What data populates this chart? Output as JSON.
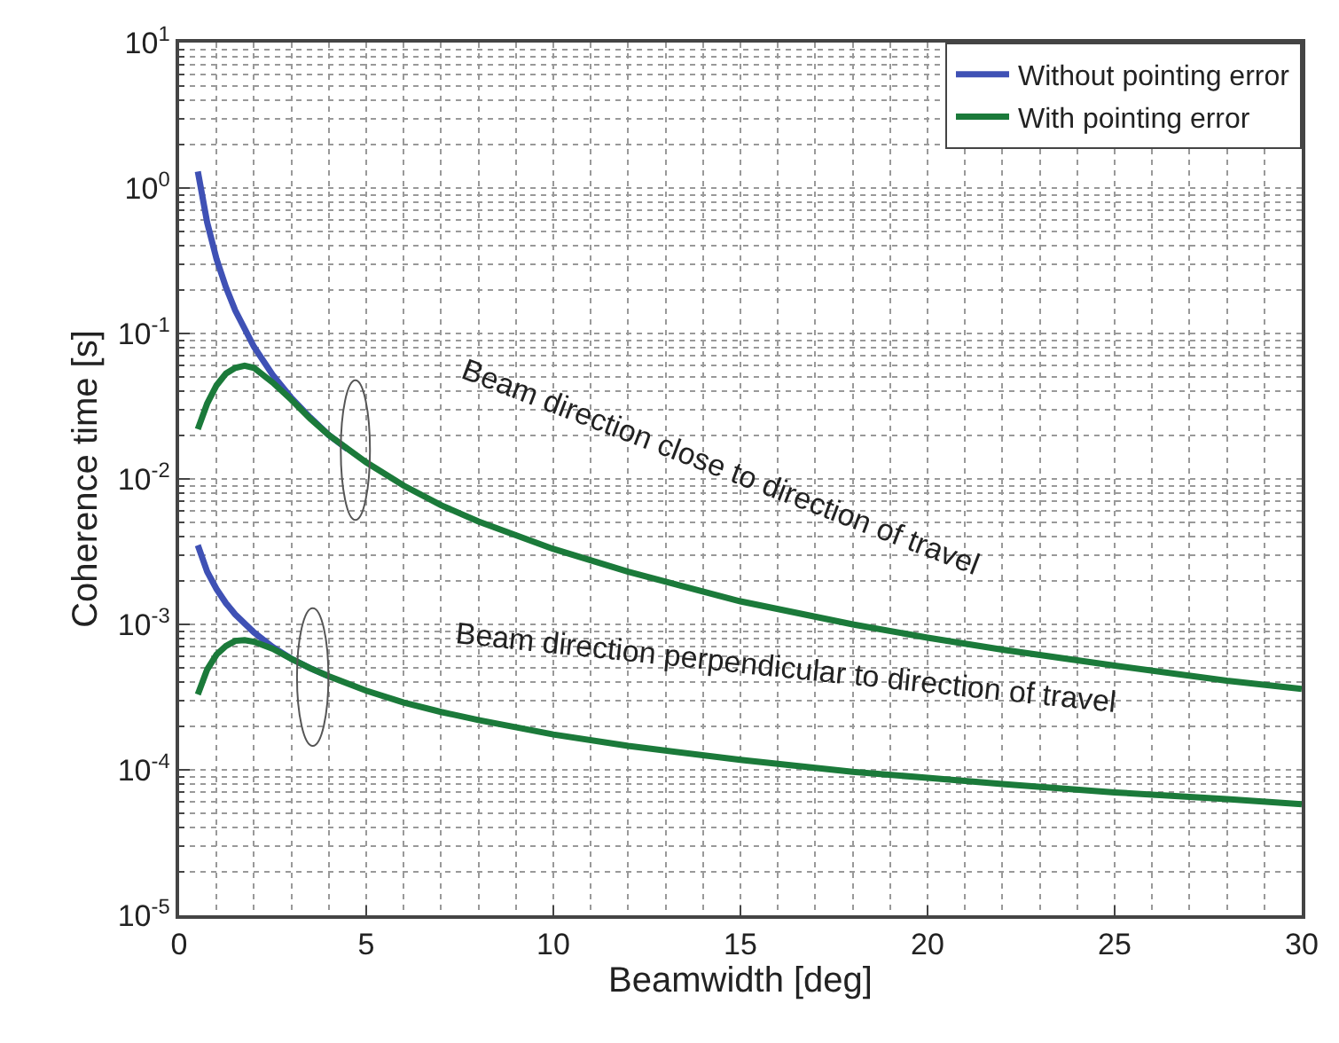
{
  "chart_data": {
    "type": "line",
    "xlabel": "Beamwidth [deg]",
    "ylabel": "Coherence time [s]",
    "log": "y",
    "xlim": [
      0,
      30
    ],
    "xticks": [
      0,
      5,
      10,
      15,
      20,
      25,
      30
    ],
    "ylim": [
      1e-05,
      10
    ],
    "yticks": [
      {
        "value": 1e-05,
        "label": "10$^{-5}$"
      },
      {
        "value": 0.0001,
        "label": "10$^{-4}$"
      },
      {
        "value": 0.001,
        "label": "10$^{-3}$"
      },
      {
        "value": 0.01,
        "label": "10$^{-2}$"
      },
      {
        "value": 0.1,
        "label": "10$^{-1}$"
      },
      {
        "value": 1,
        "label": "10$^{0}$"
      },
      {
        "value": 10,
        "label": "10$^{1}$"
      }
    ],
    "grid": true,
    "legend": "top right",
    "marker": "none",
    "line_style": "solid",
    "series": [
      {
        "name": "Without pointing error",
        "color": "#3f51b5",
        "x": [
          0.5,
          0.75,
          1,
          1.25,
          1.5,
          2,
          2.5,
          3,
          3.5,
          4,
          4.5
        ],
        "values": [
          1.3,
          0.578,
          0.325,
          0.208,
          0.144,
          0.081,
          0.052,
          0.036,
          0.0265,
          0.02,
          0.016
        ]
      },
      {
        "name": "With pointing error",
        "color": "#1b7a3a",
        "x": [
          0.5,
          0.75,
          1,
          1.25,
          1.5,
          1.75,
          2,
          2.5,
          3,
          3.5,
          4,
          5,
          6,
          7,
          8,
          10,
          12,
          15,
          18,
          20,
          22,
          25,
          28,
          30
        ],
        "values": [
          0.022,
          0.033,
          0.044,
          0.053,
          0.058,
          0.06,
          0.058,
          0.046,
          0.035,
          0.026,
          0.02,
          0.013,
          0.009,
          0.0066,
          0.0051,
          0.0033,
          0.0023,
          0.00144,
          0.001,
          0.00081,
          0.00067,
          0.00052,
          0.00041,
          0.00036
        ]
      },
      {
        "color": "#3f51b5",
        "x": [
          0.5,
          0.75,
          1,
          1.25,
          1.5,
          2,
          2.5,
          3,
          3.5,
          4
        ],
        "values": [
          0.0035,
          0.0023,
          0.00175,
          0.0014,
          0.00117,
          0.00088,
          0.0007,
          0.00058,
          0.0005,
          0.00044
        ]
      },
      {
        "color": "#1b7a3a",
        "x": [
          0.5,
          0.75,
          1,
          1.25,
          1.5,
          1.75,
          2,
          2.5,
          3,
          3.5,
          4,
          5,
          6,
          7,
          8,
          10,
          12,
          15,
          18,
          20,
          22,
          25,
          28,
          30
        ],
        "values": [
          0.00033,
          0.00049,
          0.00062,
          0.00071,
          0.00077,
          0.00078,
          0.00076,
          0.00068,
          0.00058,
          0.0005,
          0.00044,
          0.00035,
          0.00029,
          0.00025,
          0.00022,
          0.000175,
          0.000146,
          0.000117,
          9.7e-05,
          8.8e-05,
          8e-05,
          7e-05,
          6.3e-05,
          5.8e-05
        ]
      }
    ],
    "annotations": [
      "Beam direction close to direction of travel",
      "Beam direction perpendicular to direction of travel"
    ]
  }
}
